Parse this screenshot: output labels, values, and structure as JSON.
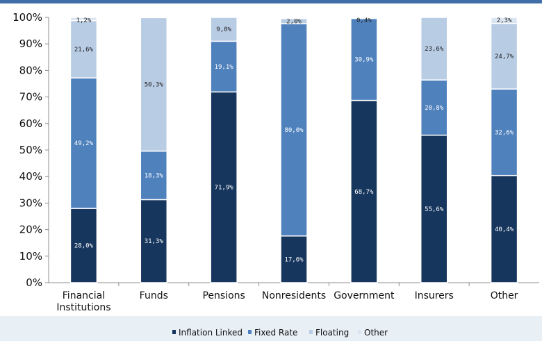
{
  "chart_data": {
    "type": "bar",
    "stacked": true,
    "categories": [
      "Financial\nInstitutions",
      "Funds",
      "Pensions",
      "Nonresidents",
      "Government",
      "Insurers",
      "Other"
    ],
    "series": [
      {
        "name": "Inflation Linked",
        "color": "#17365d",
        "values": [
          28.0,
          31.3,
          71.9,
          17.6,
          68.7,
          55.6,
          40.4
        ],
        "labels": [
          "28,0%",
          "31,3%",
          "71,9%",
          "17,6%",
          "68,7%",
          "55,6%",
          "40,4%"
        ]
      },
      {
        "name": "Fixed Rate",
        "color": "#4f81bd",
        "values": [
          49.2,
          18.3,
          19.1,
          80.0,
          30.9,
          20.8,
          32.6
        ],
        "labels": [
          "49,2%",
          "18,3%",
          "19,1%",
          "80,0%",
          "30,9%",
          "20,8%",
          "32,6%"
        ]
      },
      {
        "name": "Floating",
        "color": "#b8cce4",
        "values": [
          21.6,
          50.3,
          9.0,
          2.0,
          0.4,
          23.6,
          24.7
        ],
        "labels": [
          "21,6%",
          "50,3%",
          "9,0%",
          "2,0%",
          "0,4%",
          "23,6%",
          "24,7%"
        ]
      },
      {
        "name": "Other",
        "color": "#dbe5f1",
        "values": [
          1.2,
          0.0,
          0.0,
          0.4,
          0.0,
          0.0,
          2.3
        ],
        "labels": [
          "1,2%",
          "",
          "",
          "",
          "",
          "",
          "2,3%"
        ]
      }
    ],
    "ylim": [
      0,
      100
    ],
    "yticks": [
      "0%",
      "10%",
      "20%",
      "30%",
      "40%",
      "50%",
      "60%",
      "70%",
      "80%",
      "90%",
      "100%"
    ],
    "legend_position": "bottom",
    "grid": false,
    "title": "",
    "xlabel": "",
    "ylabel": ""
  }
}
